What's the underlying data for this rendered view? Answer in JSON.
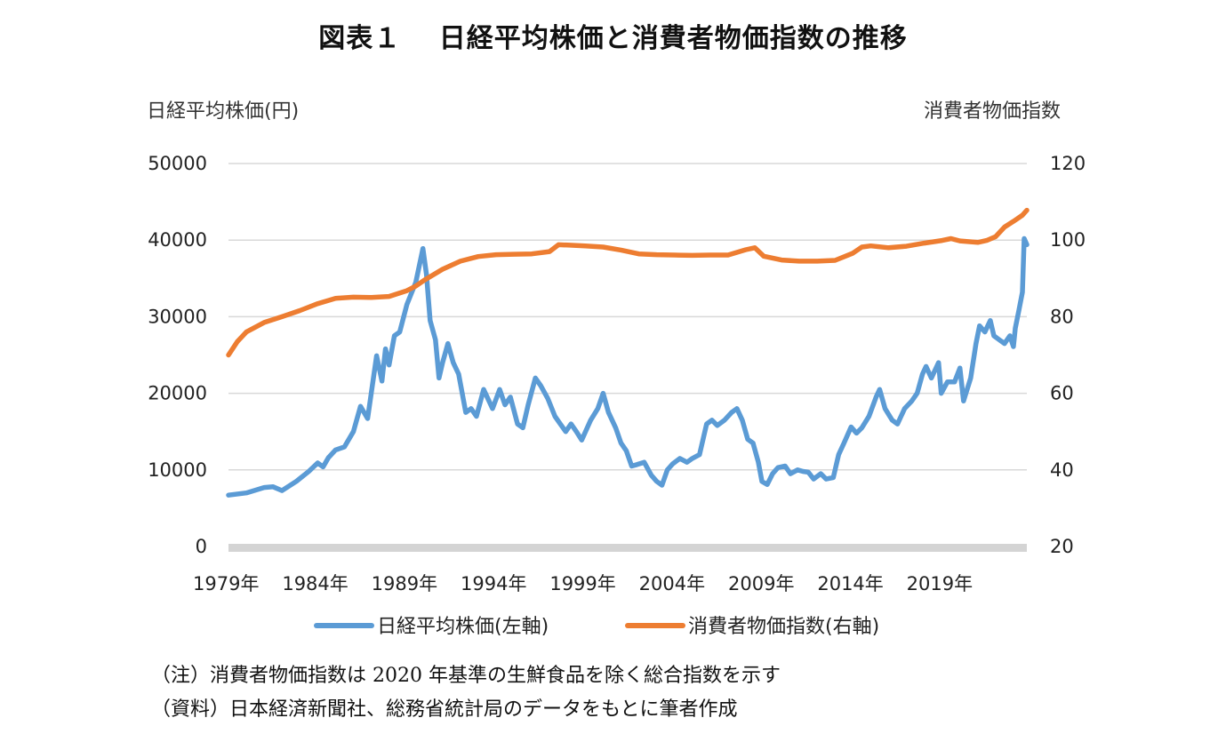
{
  "title": "図表１　 日経平均株価と消費者物価指数の推移",
  "notes": [
    "（注）消費者物価指数は 2020 年基準の生鮮食品を除く総合指数を示す",
    "（資料）日本経済新聞社、総務省統計局のデータをもとに筆者作成"
  ],
  "chart_data": {
    "type": "line",
    "title": "図表１　 日経平均株価と消費者物価指数の推移",
    "y_left_label": "日経平均株価(円)",
    "y_right_label": "消費者物価指数",
    "y_left_range": [
      0,
      50000
    ],
    "y_left_ticks": [
      "0",
      "10000",
      "20000",
      "30000",
      "40000",
      "50000"
    ],
    "y_right_range": [
      20,
      120
    ],
    "y_right_ticks": [
      "20",
      "40",
      "60",
      "80",
      "100",
      "120"
    ],
    "x_range": [
      1979.0,
      2023.75
    ],
    "x_tick_years": [
      1979,
      1984,
      1989,
      1994,
      1999,
      2004,
      2009,
      2014,
      2019
    ],
    "x_tick_labels": [
      "1979年",
      "1984年",
      "1989年",
      "1994年",
      "1999年",
      "2004年",
      "2009年",
      "2014年",
      "2019年"
    ],
    "grid": true,
    "legend_position": "bottom",
    "series": [
      {
        "name": "日経平均株価(左軸)",
        "axis": "left",
        "color": "#5B9BD5",
        "x": [
          1979.0,
          1980.0,
          1981.0,
          1981.5,
          1982.0,
          1982.8,
          1983.5,
          1984.0,
          1984.3,
          1984.6,
          1985.0,
          1985.5,
          1986.0,
          1986.4,
          1986.8,
          1987.3,
          1987.6,
          1987.8,
          1988.0,
          1988.3,
          1988.6,
          1989.0,
          1989.5,
          1989.9,
          1990.1,
          1990.3,
          1990.6,
          1990.8,
          1991.0,
          1991.3,
          1991.6,
          1991.9,
          1992.3,
          1992.6,
          1992.9,
          1993.3,
          1993.8,
          1994.2,
          1994.5,
          1994.8,
          1995.2,
          1995.5,
          1995.8,
          1996.2,
          1996.5,
          1996.9,
          1997.3,
          1997.6,
          1997.9,
          1998.2,
          1998.5,
          1998.8,
          1999.3,
          1999.7,
          2000.0,
          2000.3,
          2000.7,
          2001.0,
          2001.3,
          2001.6,
          2001.9,
          2002.3,
          2002.7,
          2003.0,
          2003.3,
          2003.6,
          2003.9,
          2004.3,
          2004.7,
          2005.0,
          2005.4,
          2005.8,
          2006.1,
          2006.4,
          2006.8,
          2007.2,
          2007.5,
          2007.8,
          2008.1,
          2008.4,
          2008.7,
          2008.9,
          2009.2,
          2009.5,
          2009.8,
          2010.2,
          2010.5,
          2010.9,
          2011.2,
          2011.5,
          2011.8,
          2012.2,
          2012.5,
          2012.9,
          2013.2,
          2013.5,
          2013.9,
          2014.2,
          2014.5,
          2014.9,
          2015.3,
          2015.5,
          2015.8,
          2016.2,
          2016.5,
          2016.9,
          2017.3,
          2017.6,
          2017.9,
          2018.1,
          2018.4,
          2018.8,
          2018.95,
          2019.3,
          2019.7,
          2020.0,
          2020.2,
          2020.6,
          2020.9,
          2021.1,
          2021.4,
          2021.7,
          2021.9,
          2022.2,
          2022.5,
          2022.8,
          2023.0,
          2023.1,
          2023.3,
          2023.5,
          2023.6,
          2023.75
        ],
        "values": [
          6700,
          7000,
          7700,
          7800,
          7300,
          8500,
          9800,
          10900,
          10400,
          11600,
          12600,
          13000,
          15000,
          18300,
          16700,
          24900,
          21600,
          25800,
          23700,
          27500,
          28000,
          31600,
          34500,
          38900,
          35500,
          29500,
          27000,
          22000,
          24000,
          26500,
          24000,
          22500,
          17500,
          18000,
          17000,
          20500,
          18000,
          20500,
          18500,
          19500,
          16000,
          15500,
          18500,
          22000,
          21000,
          19300,
          17000,
          16000,
          15000,
          16000,
          15000,
          13900,
          16500,
          18000,
          20000,
          17500,
          15500,
          13500,
          12500,
          10500,
          10700,
          11000,
          9300,
          8500,
          8000,
          10000,
          10800,
          11500,
          11000,
          11500,
          12000,
          16000,
          16500,
          15800,
          16500,
          17500,
          18000,
          16500,
          14000,
          13500,
          11000,
          8500,
          8100,
          9500,
          10300,
          10500,
          9500,
          10000,
          9800,
          9700,
          8800,
          9500,
          8800,
          9000,
          12000,
          13500,
          15600,
          14800,
          15500,
          17000,
          19500,
          20500,
          18000,
          16500,
          16000,
          18000,
          19000,
          20000,
          22500,
          23500,
          22000,
          24000,
          20000,
          21500,
          21500,
          23300,
          19000,
          22000,
          26500,
          28800,
          28000,
          29500,
          27500,
          27000,
          26500,
          27500,
          26100,
          28500,
          30800,
          33200,
          40200,
          39400
        ],
        "data_labels": []
      },
      {
        "name": "消費者物価指数(右軸)",
        "axis": "right",
        "color": "#ED7D31",
        "x": [
          1979.0,
          1979.5,
          1980.0,
          1981.0,
          1982.0,
          1983.0,
          1984.0,
          1985.0,
          1986.0,
          1987.0,
          1988.0,
          1989.0,
          1989.5,
          1990.0,
          1991.0,
          1992.0,
          1993.0,
          1994.0,
          1995.0,
          1996.0,
          1997.0,
          1997.5,
          1998.0,
          1999.0,
          2000.0,
          2001.0,
          2002.0,
          2003.0,
          2004.0,
          2005.0,
          2006.0,
          2007.0,
          2008.0,
          2008.5,
          2009.0,
          2010.0,
          2011.0,
          2012.0,
          2013.0,
          2014.0,
          2014.5,
          2015.0,
          2016.0,
          2017.0,
          2018.0,
          2019.0,
          2019.5,
          2020.0,
          2021.0,
          2021.5,
          2022.0,
          2022.5,
          2023.0,
          2023.5,
          2023.75
        ],
        "values": [
          70.0,
          73.5,
          76.0,
          78.5,
          80.0,
          81.6,
          83.4,
          84.8,
          85.1,
          85.0,
          85.3,
          86.8,
          88.0,
          89.6,
          92.4,
          94.5,
          95.7,
          96.2,
          96.3,
          96.4,
          97.0,
          98.8,
          98.7,
          98.5,
          98.2,
          97.4,
          96.4,
          96.2,
          96.1,
          96.0,
          96.1,
          96.1,
          97.5,
          98.0,
          95.8,
          94.8,
          94.5,
          94.5,
          94.7,
          96.6,
          98.2,
          98.5,
          98.0,
          98.4,
          99.2,
          99.9,
          100.4,
          99.8,
          99.4,
          99.9,
          100.9,
          103.4,
          104.9,
          106.5,
          107.8
        ],
        "data_labels": []
      }
    ]
  }
}
